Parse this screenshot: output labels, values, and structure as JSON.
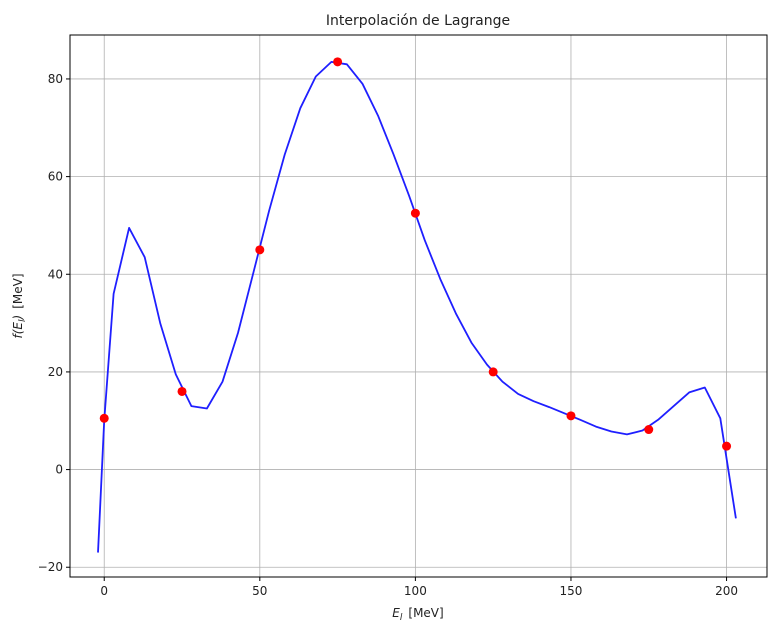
{
  "chart_data": {
    "type": "line",
    "title": "Interpolación de Lagrange",
    "xlabel_main": "E",
    "xlabel_sub": "l",
    "xlabel_unit": "[MeV]",
    "ylabel_func": "f(E",
    "ylabel_sub": "l",
    "ylabel_close": ")",
    "ylabel_unit": "[MeV]",
    "xlim": [
      -11,
      213
    ],
    "ylim": [
      -22,
      89
    ],
    "x_ticks": [
      0,
      50,
      100,
      150,
      200
    ],
    "x_tick_labels": [
      "0",
      "50",
      "100",
      "150",
      "200"
    ],
    "y_ticks": [
      -20,
      0,
      20,
      40,
      60,
      80
    ],
    "y_tick_labels": [
      "−20",
      "0",
      "20",
      "40",
      "60",
      "80"
    ],
    "grid": true,
    "series": [
      {
        "kind": "line",
        "color": "#1f1fff",
        "points": [
          [
            -2,
            -17
          ],
          [
            0,
            10
          ],
          [
            3,
            36
          ],
          [
            8,
            49.5
          ],
          [
            13,
            43.5
          ],
          [
            18,
            30
          ],
          [
            23,
            19.5
          ],
          [
            28,
            13
          ],
          [
            33,
            12.5
          ],
          [
            38,
            18
          ],
          [
            43,
            28
          ],
          [
            48,
            40.5
          ],
          [
            53,
            53
          ],
          [
            58,
            64.5
          ],
          [
            63,
            74
          ],
          [
            68,
            80.5
          ],
          [
            73,
            83.5
          ],
          [
            78,
            83
          ],
          [
            83,
            79
          ],
          [
            88,
            72.5
          ],
          [
            93,
            64.5
          ],
          [
            98,
            56
          ],
          [
            103,
            47
          ],
          [
            108,
            39
          ],
          [
            113,
            32
          ],
          [
            118,
            26
          ],
          [
            123,
            21.5
          ],
          [
            128,
            18
          ],
          [
            133,
            15.5
          ],
          [
            138,
            14
          ],
          [
            143,
            12.8
          ],
          [
            148,
            11.5
          ],
          [
            153,
            10.2
          ],
          [
            158,
            8.8
          ],
          [
            163,
            7.8
          ],
          [
            168,
            7.2
          ],
          [
            173,
            8
          ],
          [
            178,
            10.2
          ],
          [
            183,
            13
          ],
          [
            188,
            15.8
          ],
          [
            193,
            16.8
          ],
          [
            198,
            10.5
          ],
          [
            203,
            -10
          ]
        ]
      },
      {
        "kind": "points",
        "color": "#ff0000",
        "points": [
          [
            0,
            10.5
          ],
          [
            25,
            16
          ],
          [
            50,
            45
          ],
          [
            75,
            83.5
          ],
          [
            100,
            52.5
          ],
          [
            125,
            20
          ],
          [
            150,
            11
          ],
          [
            175,
            8.2
          ],
          [
            200,
            4.8
          ]
        ]
      }
    ]
  }
}
